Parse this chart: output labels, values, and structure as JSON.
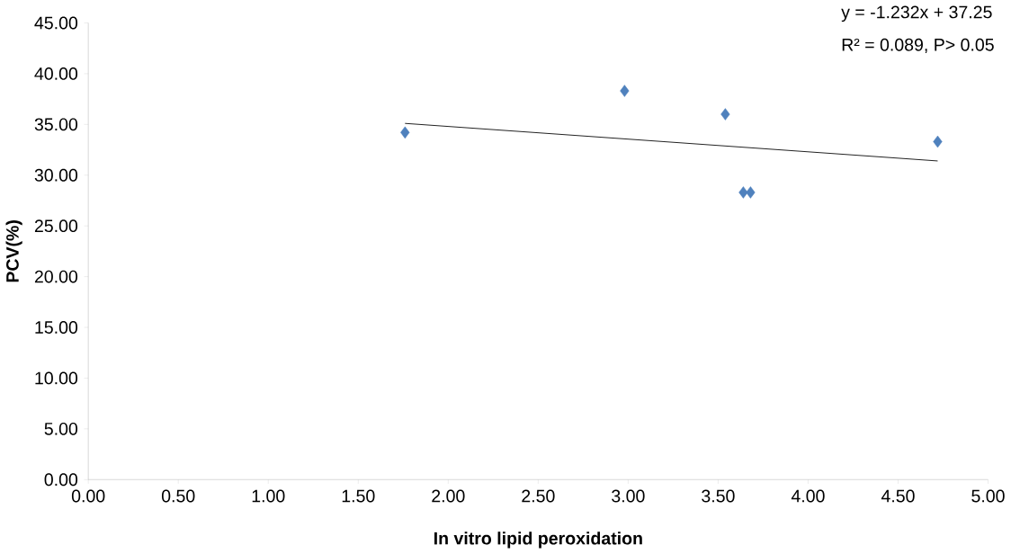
{
  "chart_data": {
    "type": "scatter",
    "xlabel": "In vitro lipid peroxidation",
    "ylabel": "PCV(%)",
    "xlim": [
      0,
      5
    ],
    "ylim": [
      0,
      45
    ],
    "xticks": [
      {
        "value": 0,
        "label": "0.00"
      },
      {
        "value": 0.5,
        "label": "0.50"
      },
      {
        "value": 1,
        "label": "1.00"
      },
      {
        "value": 1.5,
        "label": "1.50"
      },
      {
        "value": 2,
        "label": "2.00"
      },
      {
        "value": 2.5,
        "label": "2.50"
      },
      {
        "value": 3,
        "label": "3.00"
      },
      {
        "value": 3.5,
        "label": "3.50"
      },
      {
        "value": 4,
        "label": "4.00"
      },
      {
        "value": 4.5,
        "label": "4.50"
      },
      {
        "value": 5,
        "label": "5.00"
      }
    ],
    "yticks": [
      {
        "value": 0,
        "label": "0.00"
      },
      {
        "value": 5,
        "label": "5.00"
      },
      {
        "value": 10,
        "label": "10.00"
      },
      {
        "value": 15,
        "label": "15.00"
      },
      {
        "value": 20,
        "label": "20.00"
      },
      {
        "value": 25,
        "label": "25.00"
      },
      {
        "value": 30,
        "label": "30.00"
      },
      {
        "value": 35,
        "label": "35.00"
      },
      {
        "value": 40,
        "label": "40.00"
      },
      {
        "value": 45,
        "label": "45.00"
      }
    ],
    "marker": "diamond",
    "grid": false,
    "annotations": [
      "y = -1.232x + 37.25",
      "R² = 0.089, P> 0.05"
    ],
    "series": [
      {
        "color": "#4f81bd",
        "x": [
          1.76,
          2.98,
          3.54,
          3.64,
          3.68,
          4.72
        ],
        "values": [
          34.2,
          38.3,
          36.0,
          28.3,
          28.3,
          33.3
        ]
      },
      {
        "type": "line",
        "color": "#000000",
        "marker": "none",
        "x": [
          1.76,
          4.72
        ],
        "values": [
          35.1,
          31.4
        ]
      }
    ]
  }
}
